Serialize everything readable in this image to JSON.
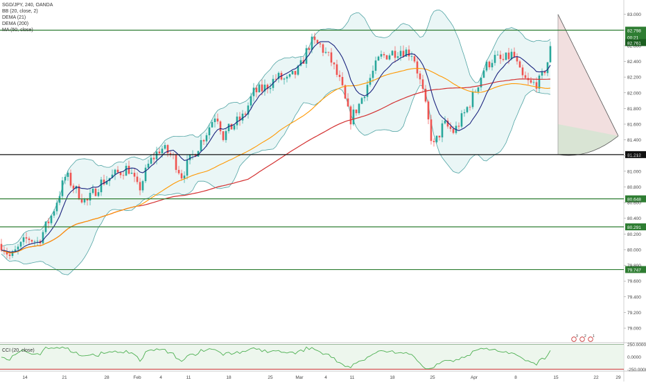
{
  "legend": {
    "symbol": "SGD/JPY, 240, OANDA",
    "bb": "BB (20, close, 2)",
    "dema21": "DEMA (21)",
    "dema200": "DEMA (200)",
    "ma": "MA (50, close)",
    "cci": "CCI (20, close)"
  },
  "price_axis": {
    "ticks": [
      "83.000",
      "82.800",
      "82.600",
      "82.400",
      "82.200",
      "82.000",
      "81.800",
      "81.600",
      "81.400",
      "81.200",
      "81.000",
      "80.800",
      "80.600",
      "80.400",
      "80.200",
      "80.000",
      "79.800",
      "79.600",
      "79.400",
      "79.200",
      "79.000"
    ],
    "tick_values": [
      83.0,
      82.8,
      82.6,
      82.4,
      82.2,
      82.0,
      81.8,
      81.6,
      81.4,
      81.2,
      81.0,
      80.8,
      80.6,
      80.4,
      80.2,
      80.0,
      79.8,
      79.6,
      79.4,
      79.2,
      79.0
    ]
  },
  "cci_axis": {
    "ticks": [
      "250.0000",
      "0.0000",
      "-250.0000"
    ],
    "tick_values": [
      250,
      0,
      -250
    ]
  },
  "time_axis": [
    "14",
    "21",
    "28",
    "Feb",
    "4",
    "11",
    "18",
    "25",
    "Mar",
    "4",
    "11",
    "18",
    "25",
    "Apr",
    "8",
    "15",
    "22",
    "29"
  ],
  "levels": [
    {
      "label": "82.798",
      "value": 82.798,
      "color": "#2e7d32"
    },
    {
      "label": "81.212",
      "value": 81.212,
      "color": "#111111"
    },
    {
      "label": "80.648",
      "value": 80.648,
      "color": "#2e7d32"
    },
    {
      "label": "80.291",
      "value": 80.291,
      "color": "#2e7d32"
    },
    {
      "label": "79.747",
      "value": 79.747,
      "color": "#2e7d32"
    }
  ],
  "price_labels": [
    {
      "label": "82.798",
      "value": 82.798,
      "color": "#2e7d32"
    },
    {
      "label": "00:21",
      "value": 82.71,
      "color": "#2e7d32"
    },
    {
      "label": "82.761",
      "value": 82.64,
      "color": "#1b5e20"
    }
  ],
  "event_icons": [
    "3",
    "2",
    "1"
  ],
  "colors": {
    "up": "#26a69a",
    "down": "#ef5350",
    "bb_fill": "#d8efef",
    "bb_line": "#4fa3a3",
    "dema21": "#1a237e",
    "dema200": "#d32f2f",
    "ma": "#ff9800",
    "cci": "#4caf50"
  },
  "chart_data": {
    "type": "candlestick",
    "symbol": "SGD/JPY",
    "timeframe": "240",
    "ylim": [
      78.85,
      83.05
    ],
    "horizontal_levels": [
      82.798,
      81.212,
      80.648,
      80.291,
      79.747
    ],
    "price_path": [
      [
        0,
        80.1
      ],
      [
        15,
        79.9
      ],
      [
        40,
        80.15
      ],
      [
        55,
        80.1
      ],
      [
        75,
        80.45
      ],
      [
        95,
        80.95
      ],
      [
        110,
        80.75
      ],
      [
        125,
        80.6
      ],
      [
        145,
        80.85
      ],
      [
        165,
        80.95
      ],
      [
        185,
        81.05
      ],
      [
        200,
        80.75
      ],
      [
        215,
        81.1
      ],
      [
        232,
        81.3
      ],
      [
        248,
        81.2
      ],
      [
        262,
        80.95
      ],
      [
        278,
        81.2
      ],
      [
        298,
        81.5
      ],
      [
        312,
        81.75
      ],
      [
        322,
        81.45
      ],
      [
        338,
        81.6
      ],
      [
        352,
        81.7
      ],
      [
        365,
        82.0
      ],
      [
        380,
        82.05
      ],
      [
        400,
        82.2
      ],
      [
        415,
        82.15
      ],
      [
        432,
        82.3
      ],
      [
        448,
        82.65
      ],
      [
        462,
        82.6
      ],
      [
        478,
        82.4
      ],
      [
        492,
        82.1
      ],
      [
        505,
        81.65
      ],
      [
        518,
        81.85
      ],
      [
        532,
        82.15
      ],
      [
        548,
        82.45
      ],
      [
        562,
        82.5
      ],
      [
        578,
        82.55
      ],
      [
        596,
        82.5
      ],
      [
        610,
        82.0
      ],
      [
        625,
        81.3
      ],
      [
        640,
        81.6
      ],
      [
        655,
        81.5
      ],
      [
        668,
        81.7
      ],
      [
        682,
        81.95
      ],
      [
        698,
        82.3
      ],
      [
        712,
        82.45
      ],
      [
        725,
        82.4
      ],
      [
        740,
        82.5
      ],
      [
        752,
        82.2
      ],
      [
        766,
        82.1
      ],
      [
        780,
        82.15
      ],
      [
        792,
        82.45
      ],
      [
        800,
        82.85
      ]
    ],
    "cci_ylim": [
      -260,
      260
    ],
    "cci_levels": [
      250,
      0,
      -250
    ]
  }
}
